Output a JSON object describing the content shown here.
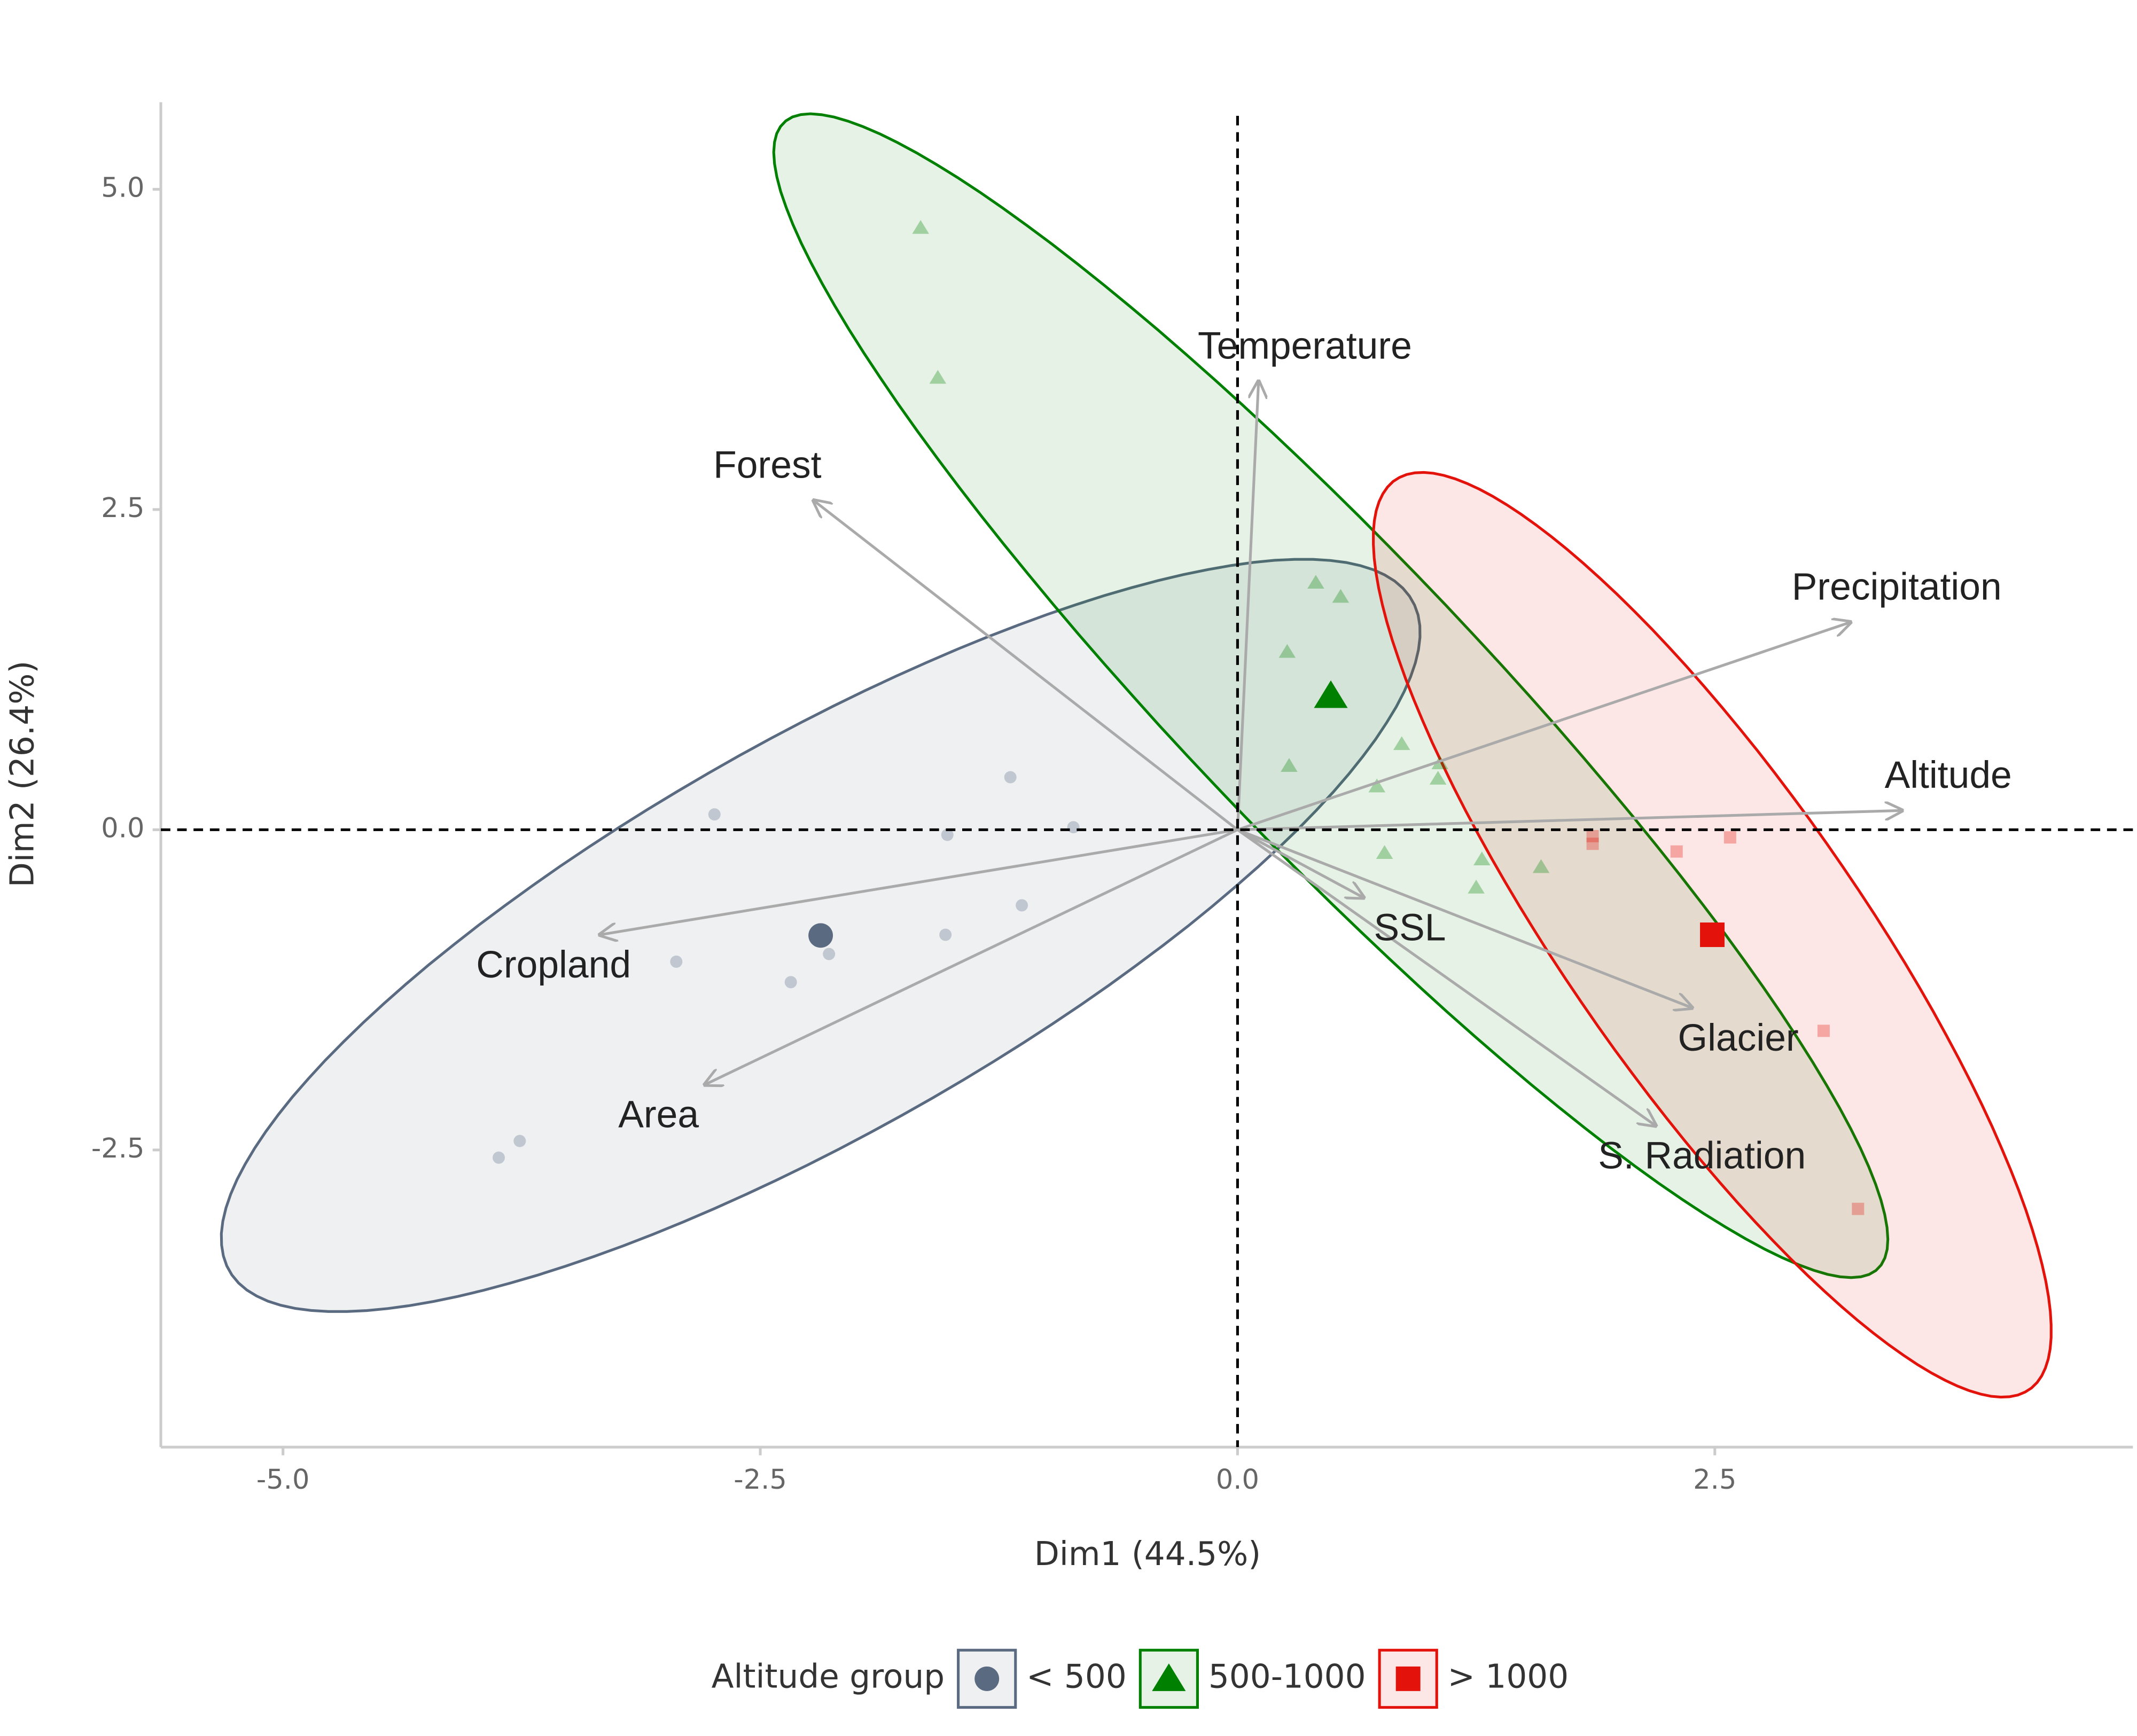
{
  "chart_data": {
    "type": "pca-biplot",
    "x_label": "Dim1 (44.5%)",
    "y_label": "Dim2 (26.4%)",
    "xlim": [
      -5.64,
      4.69
    ],
    "ylim": [
      -4.82,
      5.68
    ],
    "xticks": [
      {
        "value": -5,
        "label": "-5.0"
      },
      {
        "value": -2.5,
        "label": "-2.5"
      },
      {
        "value": 0,
        "label": "0.0"
      },
      {
        "value": 2.5,
        "label": "2.5"
      }
    ],
    "yticks": [
      {
        "value": -2.5,
        "label": "-2.5"
      },
      {
        "value": 0,
        "label": "0.0"
      },
      {
        "value": 2.5,
        "label": "2.5"
      },
      {
        "value": 5,
        "label": "5.0"
      }
    ],
    "legend_title": "Altitude group",
    "legend_position": "bottom",
    "series": [
      {
        "name": "< 500",
        "color": "#5a6a80",
        "shape": "circle",
        "x": [
          -2.74,
          -1.19,
          -1.52,
          -0.86,
          -1.13,
          -1.53,
          -2.14,
          -2.94,
          -2.34,
          -3.76,
          -3.87
        ],
        "y": [
          0.12,
          0.41,
          -0.04,
          0.02,
          -0.59,
          -0.82,
          -0.97,
          -1.03,
          -1.19,
          -2.43,
          -2.56
        ]
      },
      {
        "name": "500-1000",
        "color": "#008000",
        "shape": "triangle",
        "x": [
          -1.66,
          -1.57,
          0.41,
          0.54,
          0.26,
          0.27,
          0.86,
          1.06,
          1.05,
          0.73,
          0.77,
          1.28,
          1.59,
          1.25
        ],
        "y": [
          4.7,
          3.53,
          1.93,
          1.82,
          1.39,
          0.5,
          0.67,
          0.52,
          0.4,
          0.34,
          -0.18,
          -0.23,
          -0.29,
          -0.45
        ]
      },
      {
        "name": "> 1000",
        "color": "#e3120b",
        "shape": "square",
        "x": [
          1.86,
          1.86,
          2.3,
          2.58,
          3.07,
          3.25
        ],
        "y": [
          -0.05,
          -0.11,
          -0.17,
          -0.06,
          -1.57,
          -2.96
        ]
      }
    ],
    "arrows": [
      {
        "label": "Temperature",
        "x": 0.11,
        "y": 3.5
      },
      {
        "label": "Forest",
        "x": -2.22,
        "y": 2.57
      },
      {
        "label": "Precipitation",
        "x": 3.21,
        "y": 1.62
      },
      {
        "label": "Altitude",
        "x": 3.48,
        "y": 0.15
      },
      {
        "label": "Cropland",
        "x": -3.34,
        "y": -0.82
      },
      {
        "label": "Area",
        "x": -2.79,
        "y": -1.99
      },
      {
        "label": "SSL",
        "x": 0.66,
        "y": -0.53
      },
      {
        "label": "Glacier",
        "x": 2.38,
        "y": -1.39
      },
      {
        "label": "S. Radiation",
        "x": 2.19,
        "y": -2.31
      }
    ]
  }
}
